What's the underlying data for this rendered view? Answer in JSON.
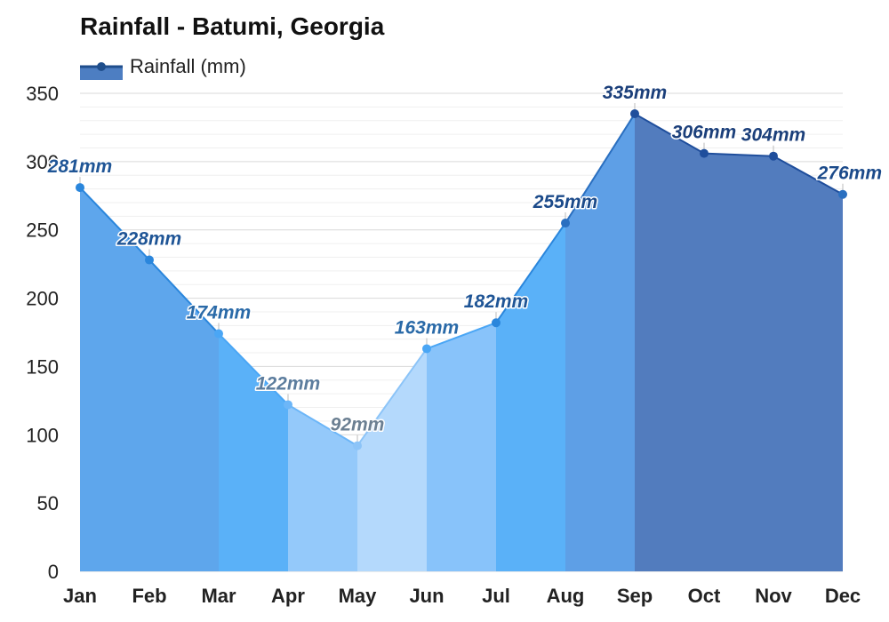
{
  "chart_data": {
    "type": "area",
    "title": "Rainfall - Batumi, Georgia",
    "legend": {
      "entries": [
        "Rainfall (mm)"
      ],
      "placement": "top-left"
    },
    "categories": [
      "Jan",
      "Feb",
      "Mar",
      "Apr",
      "May",
      "Jun",
      "Jul",
      "Aug",
      "Sep",
      "Oct",
      "Nov",
      "Dec"
    ],
    "series": [
      {
        "name": "Rainfall (mm)",
        "values": [
          281,
          228,
          174,
          122,
          92,
          163,
          182,
          255,
          335,
          306,
          304,
          276
        ],
        "data_labels": [
          "281mm",
          "228mm",
          "174mm",
          "122mm",
          "92mm",
          "163mm",
          "182mm",
          "255mm",
          "335mm",
          "306mm",
          "304mm",
          "276mm"
        ]
      }
    ],
    "ylim": [
      0,
      350
    ],
    "yticks": [
      0,
      50,
      100,
      150,
      200,
      250,
      300,
      350
    ],
    "grid": true,
    "colors": {
      "legend_line": "#1f4e8c",
      "legend_fill": "#4d7ec2",
      "month_fills": [
        "#5ea6ec",
        "#5ea6ec",
        "#5ab1f8",
        "#94c9fa",
        "#b4d9fc",
        "#88c3fa",
        "#5ab1f8",
        "#5e9fe6",
        "#527cbe",
        "#527cbe",
        "#527cbe",
        "#5e95d7"
      ],
      "line_colors": [
        "#2a86dc",
        "#2a86dc",
        "#4aa6f5",
        "#6cb6f8",
        "#8cc4f8",
        "#4aa6f5",
        "#2a86dc",
        "#2a6fc0",
        "#1f4e9c",
        "#1f4e9c",
        "#1f4e9c",
        "#2a6fc0"
      ],
      "label_colors": [
        "#1f5596",
        "#1f5596",
        "#2a6aa8",
        "#5c7d9e",
        "#6b7f92",
        "#2a6aa8",
        "#1f5596",
        "#1b4a8a",
        "#1b3f7a",
        "#1b3f7a",
        "#1b3f7a",
        "#1b4a8a"
      ]
    }
  }
}
